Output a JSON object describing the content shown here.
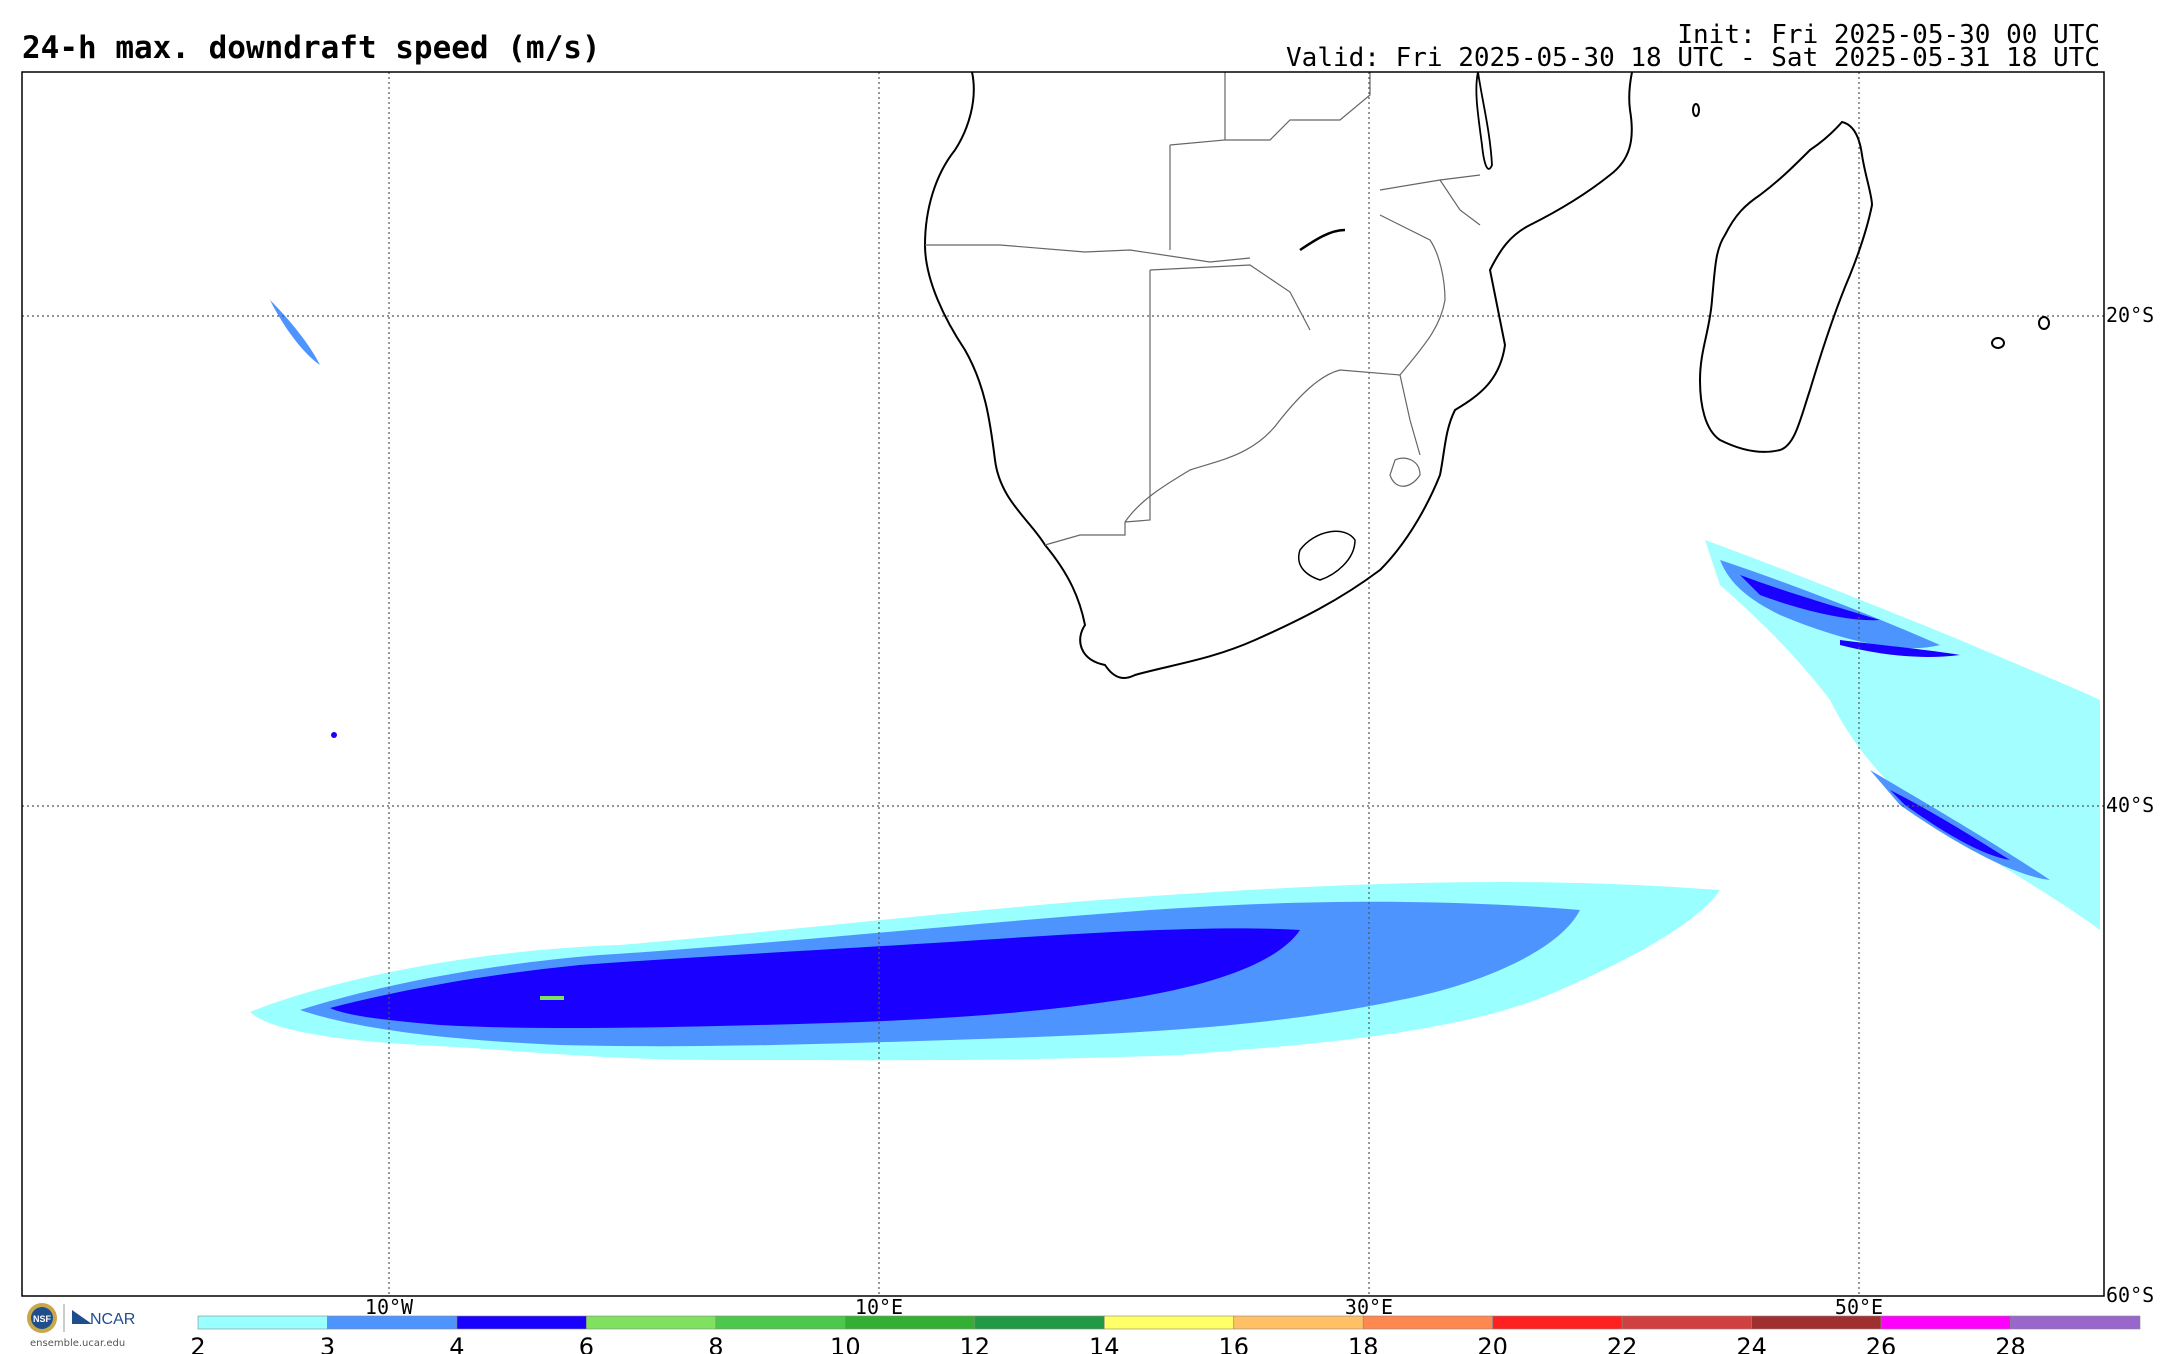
{
  "header": {
    "title": "24-h max. downdraft speed (m/s)",
    "init": "Init: Fri 2025-05-30 00 UTC",
    "valid": "Valid: Fri 2025-05-30 18 UTC - Sat 2025-05-31 18 UTC"
  },
  "map": {
    "projection": "cylindrical",
    "lon_range": [
      -17.5,
      67.5
    ],
    "lat_range": [
      -60,
      -10
    ],
    "lon_gridlines": [
      {
        "lon": -10,
        "label": "10°W"
      },
      {
        "lon": 10,
        "label": "10°E"
      },
      {
        "lon": 30,
        "label": "30°E"
      },
      {
        "lon": 50,
        "label": "50°E"
      }
    ],
    "lat_gridlines": [
      {
        "lat": -20,
        "label": "20°S"
      },
      {
        "lat": -40,
        "label": "40°S"
      },
      {
        "lat": -60,
        "label": "60°S"
      }
    ],
    "features": [
      "Southern Africa coastline",
      "country borders",
      "Madagascar",
      "Lake Malawi",
      "Lesotho"
    ]
  },
  "colorbar": {
    "ticks": [
      "2",
      "3",
      "4",
      "6",
      "8",
      "10",
      "12",
      "14",
      "16",
      "18",
      "20",
      "22",
      "24",
      "26",
      "28"
    ],
    "colors": [
      "#99ffff",
      "#4d94ff",
      "#1a00ff",
      "#80e060",
      "#4cc84c",
      "#33b033",
      "#229944",
      "#ffff66",
      "#ffc066",
      "#ff8850",
      "#ff2020",
      "#d04040",
      "#a03030",
      "#ff00ff",
      "#9966cc"
    ]
  },
  "logo": {
    "nsf": "NSF",
    "ncar": "NCAR",
    "url": "ensemble.ucar.edu"
  }
}
